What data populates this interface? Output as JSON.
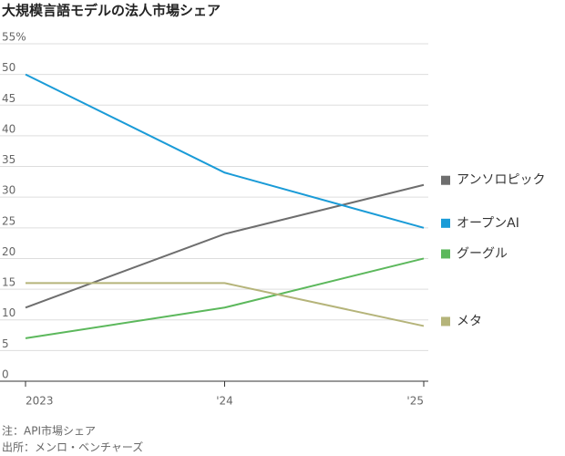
{
  "chart_data": {
    "type": "line",
    "title": "大規模言語モデルの法人市場シェア",
    "categories": [
      "2023",
      "'24",
      "'25"
    ],
    "series": [
      {
        "name": "アンソロピック",
        "color": "#6e6e6e",
        "values": [
          12,
          24,
          32
        ]
      },
      {
        "name": "オープンAI",
        "color": "#1a9bd7",
        "values": [
          50,
          34,
          25
        ]
      },
      {
        "name": "グーグル",
        "color": "#5cb85c",
        "values": [
          7,
          12,
          20
        ]
      },
      {
        "name": "メタ",
        "color": "#b5b47a",
        "values": [
          16,
          16,
          9
        ]
      }
    ],
    "ylim": [
      0,
      55
    ],
    "yticks": [
      0,
      5,
      10,
      15,
      20,
      25,
      30,
      35,
      40,
      45,
      50,
      {
        "value": 55,
        "label": "55%"
      }
    ],
    "grid": true,
    "notes": [
      "注：API市場シェア",
      "出所：メンロ・ベンチャーズ"
    ]
  }
}
